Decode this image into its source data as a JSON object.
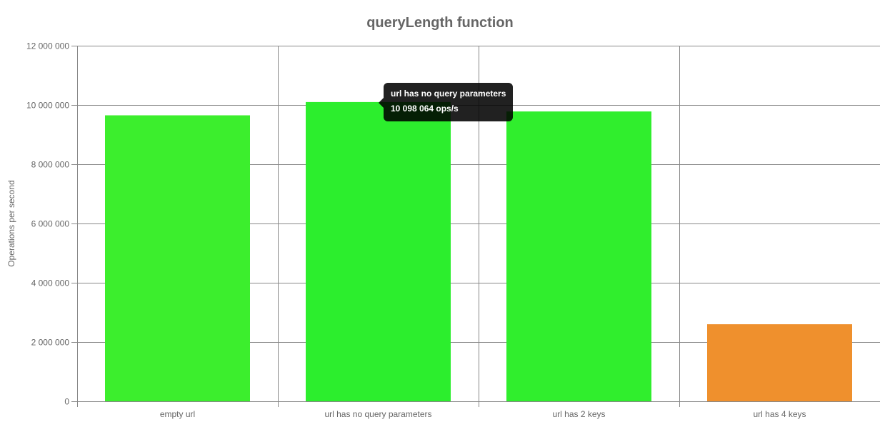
{
  "chart_data": {
    "type": "bar",
    "title": "queryLength function",
    "ylabel": "Operations per second",
    "xlabel": "",
    "categories": [
      "empty url",
      "url has no query parameters",
      "url has 2 keys",
      "url has 4 keys"
    ],
    "values": [
      9650000,
      10098064,
      9780000,
      2600000
    ],
    "colors": [
      "#3cee2d",
      "#2cee2d",
      "#30ee2d",
      "#ef902d"
    ],
    "ylim": [
      0,
      12000000
    ],
    "yticks": [
      0,
      2000000,
      4000000,
      6000000,
      8000000,
      10000000,
      12000000
    ],
    "ytick_labels": [
      "0",
      "2 000 000",
      "4 000 000",
      "6 000 000",
      "8 000 000",
      "10 000 000",
      "12 000 000"
    ],
    "grid": true,
    "legend": "none"
  },
  "tooltip": {
    "title": "url has no query parameters",
    "body": "10 098 064 ops/s"
  }
}
